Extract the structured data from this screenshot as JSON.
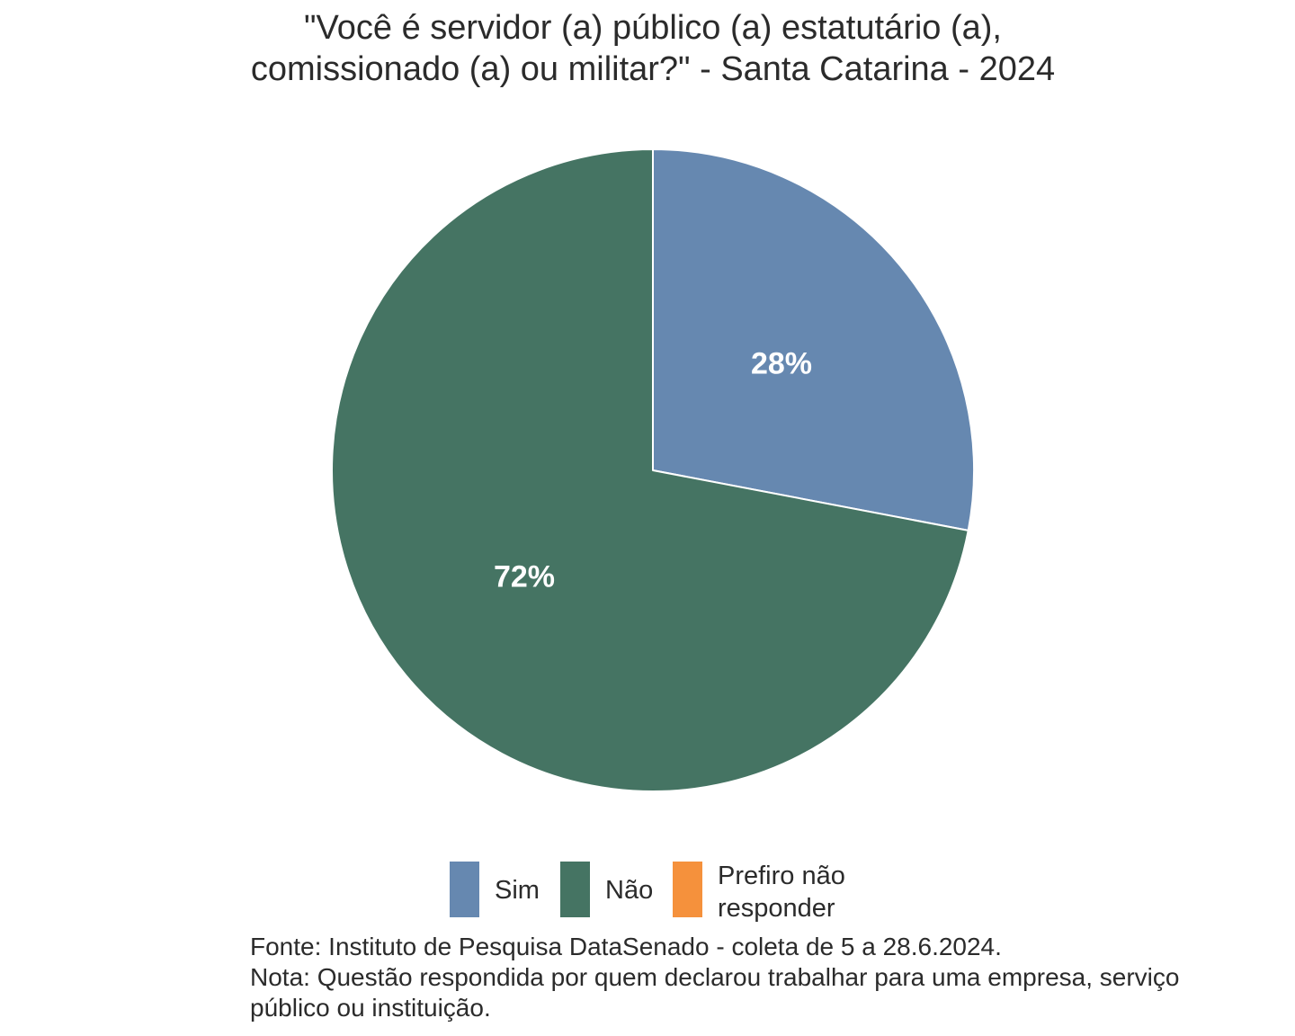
{
  "title": {
    "line1": "\"Você é servidor (a) público (a) estatutário (a),",
    "line2": "comissionado (a) ou militar?\" - Santa Catarina - 2024"
  },
  "chart_data": {
    "type": "pie",
    "title": "\"Você é servidor (a) público (a) estatutário (a), comissionado (a) ou militar?\" - Santa Catarina - 2024",
    "categories": [
      "Sim",
      "Não",
      "Prefiro não responder"
    ],
    "values": [
      28,
      72,
      0
    ],
    "labels": [
      "28%",
      "72%",
      ""
    ],
    "colors": [
      "#6688b0",
      "#457463",
      "#f5913c"
    ],
    "legend_position": "bottom",
    "start": "12 o'clock",
    "direction": "clockwise"
  },
  "legend": {
    "items": [
      {
        "label_lines": [
          "Sim"
        ],
        "color": "#6688b0"
      },
      {
        "label_lines": [
          "Não"
        ],
        "color": "#457463"
      },
      {
        "label_lines": [
          "Prefiro não",
          "responder"
        ],
        "color": "#f5913c"
      }
    ]
  },
  "caption": {
    "source": "Fonte: Instituto de Pesquisa DataSenado - coleta de 5 a 28.6.2024.",
    "note_line1": "Nota: Questão respondida por quem declarou trabalhar para uma empresa, serviço",
    "note_line2": "público ou instituição."
  }
}
